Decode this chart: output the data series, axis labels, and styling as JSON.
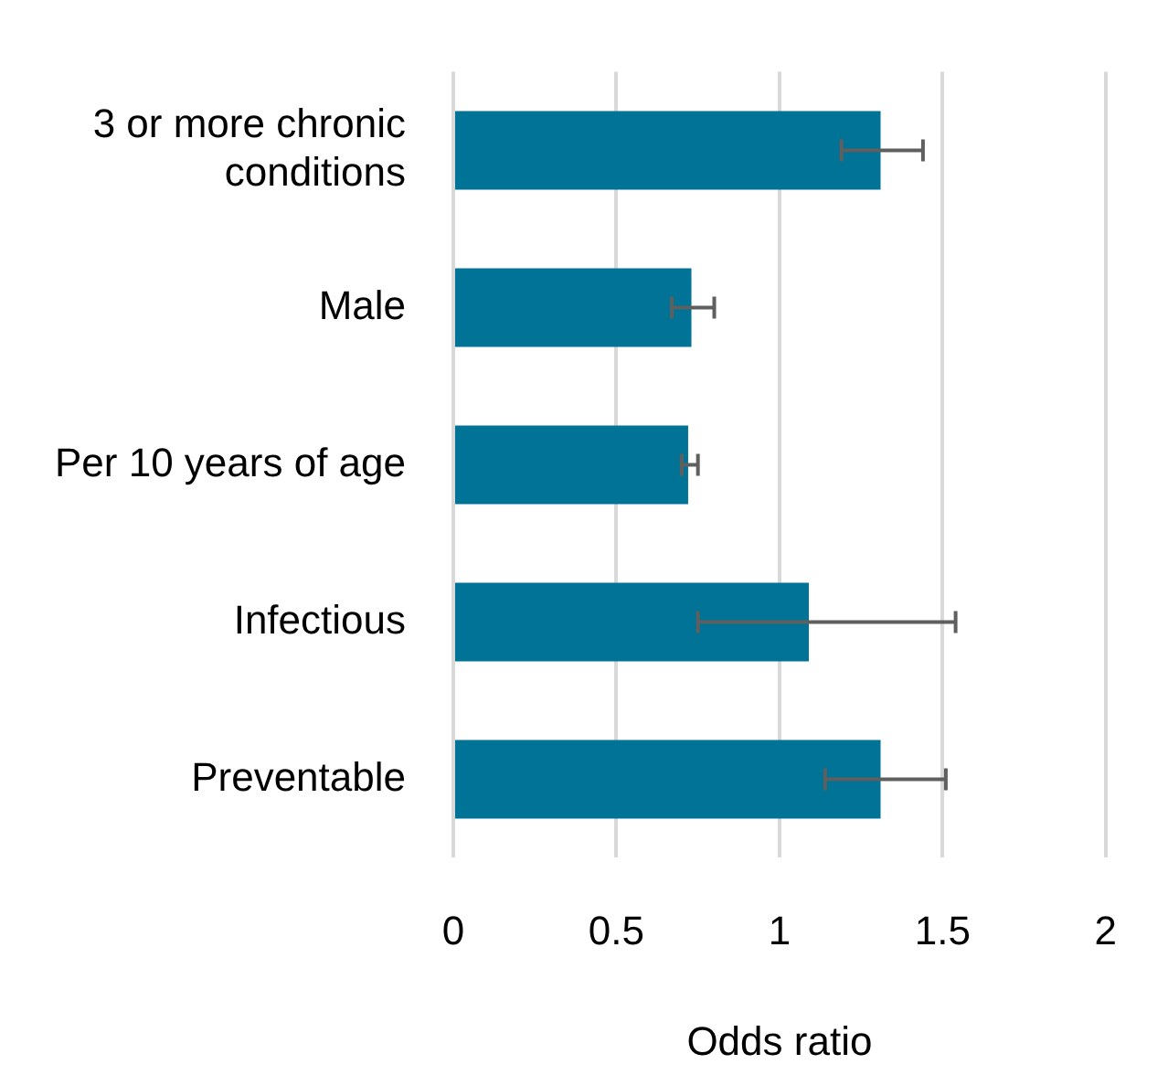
{
  "chart_data": {
    "type": "bar",
    "orientation": "horizontal",
    "xlabel": "Odds ratio",
    "categories": [
      "3 or more chronic conditions",
      "Male",
      "Per 10 years of age",
      "Infectious",
      "Preventable"
    ],
    "values": [
      1.31,
      0.73,
      0.72,
      1.09,
      1.31
    ],
    "errors": [
      [
        1.19,
        1.44
      ],
      [
        0.67,
        0.8
      ],
      [
        0.7,
        0.75
      ],
      [
        0.75,
        1.54
      ],
      [
        1.14,
        1.51
      ]
    ],
    "color": "#007396",
    "xlim": [
      0,
      2
    ],
    "xticks": [
      0,
      0.5,
      1,
      1.5,
      2
    ],
    "grid": "x",
    "legend": false
  }
}
